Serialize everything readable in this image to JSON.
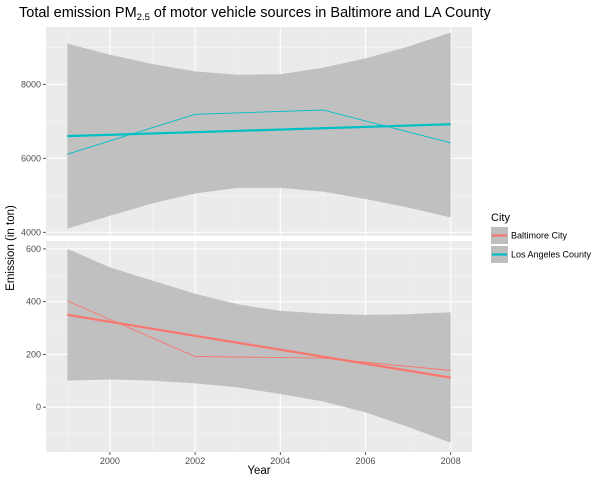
{
  "chart_data": {
    "type": "line",
    "title": "Total emission PM",
    "title_subscript": "2.5",
    "title_suffix": " of motor vehicle sources in Baltimore and LA County",
    "xlabel": "Year",
    "ylabel": "Emission (in ton)",
    "x_ticks": [
      2000,
      2002,
      2004,
      2006,
      2008
    ],
    "xlim": [
      1998.5,
      2008.5
    ],
    "grid": true,
    "legend": {
      "title": "City",
      "position": "right"
    },
    "panels": [
      {
        "ylim": [
          3900,
          9550
        ],
        "y_ticks": [
          4000,
          6000,
          8000
        ],
        "series": {
          "name": "Los Angeles County",
          "color": "#00bfc4",
          "x": [
            1999,
            2002,
            2005,
            2008
          ],
          "y": [
            6110,
            7190,
            7305,
            6420
          ],
          "fit": {
            "x": [
              1999,
              2008
            ],
            "y": [
              6600,
              6920
            ]
          },
          "band_x": [
            1999,
            2000,
            2001,
            2002,
            2003,
            2004,
            2005,
            2006,
            2007,
            2008
          ],
          "band_upper": [
            9100,
            8800,
            8550,
            8350,
            8260,
            8270,
            8450,
            8700,
            9020,
            9400
          ],
          "band_lower": [
            4100,
            4450,
            4780,
            5050,
            5200,
            5200,
            5100,
            4900,
            4670,
            4400
          ]
        }
      },
      {
        "ylim": [
          -170,
          630
        ],
        "y_ticks": [
          0,
          200,
          400,
          600
        ],
        "series": {
          "name": "Baltimore City",
          "color": "#f8766d",
          "x": [
            1999,
            2002,
            2005,
            2008
          ],
          "y": [
            403,
            192,
            186,
            139
          ],
          "fit": {
            "x": [
              1999,
              2008
            ],
            "y": [
              350,
              112
            ]
          },
          "band_x": [
            1999,
            2000,
            2001,
            2002,
            2003,
            2004,
            2005,
            2006,
            2007,
            2008
          ],
          "band_upper": [
            600,
            530,
            480,
            430,
            390,
            365,
            355,
            350,
            352,
            360
          ],
          "band_lower": [
            100,
            105,
            100,
            90,
            75,
            50,
            22,
            -20,
            -75,
            -135
          ]
        }
      }
    ],
    "legend_items": [
      {
        "name": "Baltimore City",
        "color": "#f8766d"
      },
      {
        "name": "Los Angeles County",
        "color": "#00bfc4"
      }
    ]
  }
}
